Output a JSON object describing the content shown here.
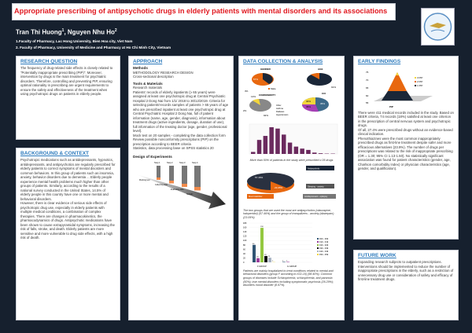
{
  "header": {
    "title": "Appropriate prescribing of antipsychotic drugs in elderly patients with mental disorders and its associations",
    "authors": [
      {
        "name": "Tran Thi Huong",
        "sup": "1"
      },
      {
        "name": "Nguyen Nhu Ho",
        "sup": "2"
      }
    ],
    "affiliations": [
      "1.Faculty of Pharmacy, Lac Hong University, Bien Hoa city, Viet Nam",
      "2. Faculty of Pharmacy, University of Medicine and Pharmacy at Ho Chi Minh City, Vietnam"
    ]
  },
  "research_question": {
    "heading": "RESEARCH QUESTION",
    "text": "The frequency of drug-related side effects is closely related to \"Potentially inappropriate prescribing (PIP)\". Moreover, intervention by drugs is the main treatment for psychiatric disorders. Therefore, controlling and preventing PIP, ensuring optimal rationality in prescribing are urgent requirements to ensure the safety and effectiveness of the treatment when using psychotropic drugs on patients in elderly people."
  },
  "background": {
    "heading": "BACKGROUND & CONTEXT",
    "text": "Psychotropic medications such as antidepressants, hypnotics, antidepressants, and antipsychotics are regularly prescribed for elderly patients to correct symptoms of mental disorders and common behaviors. In this group of patients such as insomnia, anxiety, behavior disorders due to dementia ... Elderly people experience mental health problems much higher than other groups of patients.  Similarly, according to the results of a national survey conducted in the United States, 14.5% of elderly people in this country have one or more mental and behavioral disorders.\nHowever, there is clear evidence of serious side effects of psychotropic drug use, especially in elderly patients with multiple medical conditions, a combination of complex therapies. There are changes in pharmacokinetics, the pharmacodynamics of drugs. Antipsychotic medications have been shown to cause extrapyramidal symptoms, increasing the risk of falls, stroke, and death. Elderly patients are more sensitive and more vulnerable to drug side effects, with a high risk of death."
  },
  "approach": {
    "heading": "APPROACH",
    "methods_title": "Methods",
    "methods_text": "METHODOLOGY RESEARCH DESIGN\nCross-sectional description",
    "tools_title": "Tools & Materials",
    "tools_text": "Research materials\nPatients' records of elderly inpatients (≥ 65 years) were assigned at least one psychotropic drug at Central Psychiatric Hospital 2 Dong Nai from 1/1/ 2018 to 30/12/2019. Criteria for selecting patients'records samples of patients > 65 years of age who are prescribed inpatient at least one psychotropic drug at Central Psychiatric Hospital 2 Dong Nai, full of patient information (name, age, gender, diagnosis), information about treatment drugs (active ingredients, dosage, duration of use), full information of the treating doctor (age, gender, professional level).\nMock test on 20 samples - completing the data collection form\nReview possible nonconformity prescriptions (PIP) on the prescription according to BEER criteria\nStatistics, data processing base on SPSS statistics 20",
    "design_title": "Design of Experiments",
    "steps": [
      "Step 1",
      "Step 2",
      "Step 3",
      "Step 4"
    ],
    "stages": [
      "Mocking test",
      "Collecting data",
      "Evaluating data",
      "Statistic"
    ]
  },
  "data_collection": {
    "heading": "DATA COLLECTION & ANALYSIS",
    "pies": [
      {
        "title": "GENDER",
        "label": "57%",
        "legend": "Male"
      },
      {
        "title": "AGE",
        "label": "91%"
      },
      {
        "title": "COMORBIDITY",
        "labels": [
          "3%",
          "13%",
          "92%",
          "2%"
        ],
        "legend": [
          "Other",
          "Asthma",
          "Diabetes",
          "Hypertension"
        ]
      },
      {
        "title": "CCI",
        "labels": [
          "30%",
          "35%",
          "35%"
        ]
      }
    ],
    "hist_caption": "More than 50% of patients in the study were prescribed ≥ 05 drugs",
    "drug_pie": {
      "labels": [
        "57.46%",
        "23.05%"
      ],
      "callouts": [
        "Antipsychotic",
        "Sleeping - anxiety",
        "Mood stabilizer",
        "Antidepressant - epilepsy"
      ]
    },
    "drug_caption": "The two groups that are used the most are antipsychotics (olanzapine, haloperidol) (57.46%) and the group of tranquilizers - anxiety (diazepam) (23.05%)",
    "bar_caption": "Patients are mainly hospitalized to treat conditions related to mental and behavioral disorders (group F according to ICD-10) (98.40%). Common groups of diseases include Schizophrenia, schizophrenia, and paranoia (50%); true mental disorders including symptomatic psychosis (26.29%); disorders mood disorder (8.97%)."
  },
  "early_findings": {
    "heading": "EARLY FINDINGS",
    "legend": [
      "3 PIP",
      "2 PIP",
      "1 PIP"
    ],
    "axis_label": "PIP",
    "text": "There were 411 medical records included in the study. Based on BEER criteria, 74 records (18%) satisfied at least one criterion in the prescription of central nervous system and psychotropic drugs.\nOf all, 27.4% were prescribed drugs without an evidence-based clinical indication.\nPhenothiazines were the most common inappropriately prescribed drugs as first-line treatment despite safer and more efficacious alternatives (23.9%). The number of drugs per prescriptions was related to the risk of inappropriate prescribing (OR = 1.30; 95% CI 1.13-1.50). No statistically significant association was found for patient characteristics (gender, age, Charlson comorbidity index) or physician characteristics (age, gender, and qualification)."
  },
  "future_work": {
    "heading": "FUTURE WORK",
    "text": "Expanding research subjects to outpatient prescriptions. Interventions should be implemented to reduce the number of inappropriate prescriptions in the elderly, such as a restriction of unnecessary drug use or consideration of safety and efficacy of first-line treatment drugs."
  },
  "chart_data": [
    {
      "type": "bar",
      "values": [
        3,
        21,
        27,
        40,
        38,
        29,
        17,
        11,
        8,
        6,
        2,
        1,
        0.5,
        0.5
      ],
      "color": "#6b2a5e"
    },
    {
      "type": "bar",
      "categories": [
        "F GROUP",
        "G GROUP"
      ],
      "ylim": [
        0,
        180
      ],
      "yticks": [
        0,
        20,
        40,
        60,
        80,
        100,
        120,
        140,
        160,
        180
      ],
      "series": [
        {
          "name": "F00 - F09",
          "values": [
            80,
            2
          ],
          "color": "#2f5473"
        },
        {
          "name": "F10 - F19",
          "values": [
            19,
            2
          ],
          "color": "#9b3f9b"
        },
        {
          "name": "F20 - F29",
          "values": [
            158,
            0
          ],
          "color": "#94c840"
        },
        {
          "name": "F30 - F39",
          "values": [
            29,
            0
          ],
          "color": "#111111"
        },
        {
          "name": "F40 - F49",
          "values": [
            21,
            0
          ],
          "color": "#a9b4c4"
        },
        {
          "name": "F50 - F59",
          "values": [
            1,
            0
          ],
          "color": "#f2d53c"
        }
      ]
    }
  ]
}
